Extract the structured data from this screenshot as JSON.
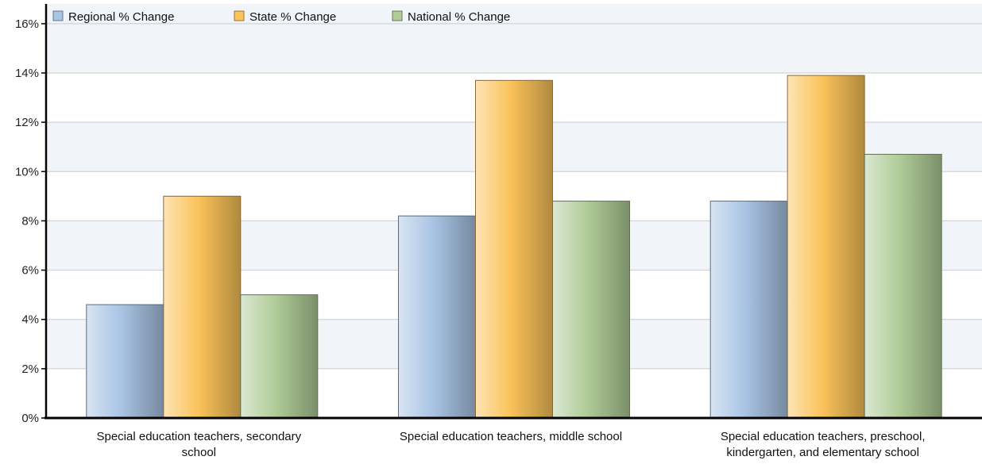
{
  "chart_data": {
    "type": "bar",
    "categories": [
      [
        "Special education teachers, secondary",
        "school"
      ],
      [
        "Special education teachers, middle school"
      ],
      [
        "Special education teachers, preschool,",
        "kindergarten, and elementary school"
      ]
    ],
    "series": [
      {
        "name": "Regional % Change",
        "values": [
          4.6,
          8.2,
          8.8
        ],
        "color": "#a9c4e4"
      },
      {
        "name": "State % Change",
        "values": [
          9.0,
          13.7,
          13.9
        ],
        "color": "#fbc35a"
      },
      {
        "name": "National % Change",
        "values": [
          5.0,
          8.8,
          10.7
        ],
        "color": "#b0cc98"
      }
    ],
    "y_ticks": [
      "0%",
      "2%",
      "4%",
      "6%",
      "8%",
      "10%",
      "12%",
      "14%",
      "16%"
    ],
    "ylim": [
      0,
      16.8
    ],
    "grid": true,
    "legend_position": "top-left"
  }
}
